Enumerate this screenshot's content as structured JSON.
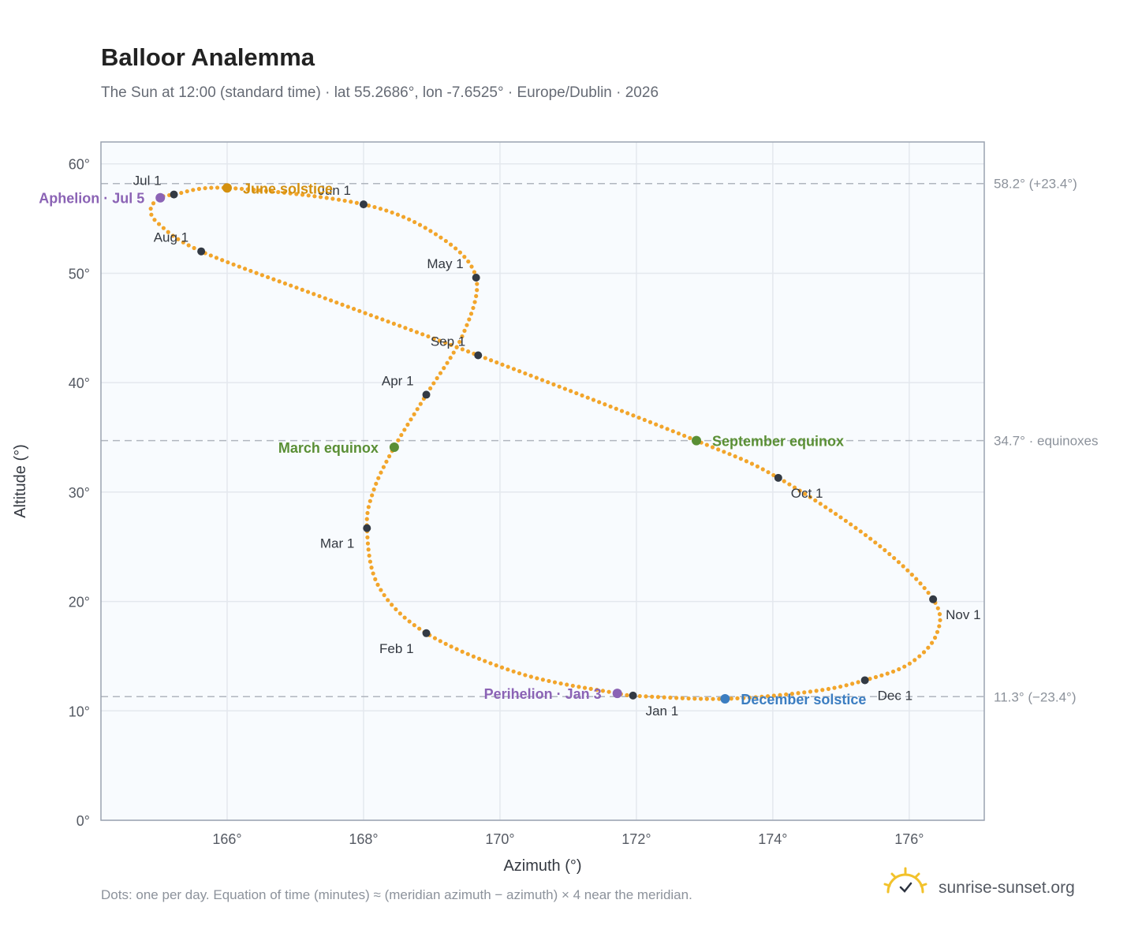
{
  "header": {
    "title": "Balloor Analemma",
    "subtitle": "The Sun at 12:00 (standard time) · lat 55.2686°, lon -7.6525° · Europe/Dublin · 2026"
  },
  "footer": {
    "note": "Dots: one per day. Equation of time (minutes) ≈ (meridian azimuth − azimuth) × 4 near the meridian.",
    "brand": "sunrise-sunset.org"
  },
  "chart_data": {
    "type": "scatter",
    "xlabel": "Azimuth (°)",
    "ylabel": "Altitude (°)",
    "xlim": [
      164.15,
      177.1
    ],
    "ylim": [
      0,
      62
    ],
    "x_ticks": [
      {
        "value": 166,
        "label": "166°"
      },
      {
        "value": 168,
        "label": "168°"
      },
      {
        "value": 170,
        "label": "170°"
      },
      {
        "value": 172,
        "label": "172°"
      },
      {
        "value": 174,
        "label": "174°"
      },
      {
        "value": 176,
        "label": "176°"
      }
    ],
    "y_ticks": [
      {
        "value": 0,
        "label": "0°"
      },
      {
        "value": 10,
        "label": "10°"
      },
      {
        "value": 20,
        "label": "20°"
      },
      {
        "value": 30,
        "label": "30°"
      },
      {
        "value": 40,
        "label": "40°"
      },
      {
        "value": 50,
        "label": "50°"
      },
      {
        "value": 60,
        "label": "60°"
      }
    ],
    "grid": true,
    "colors": {
      "path": "#f2a52b",
      "month": "#333a44",
      "solstice_june": "#d4900e",
      "solstice_december": "#3b7dc1",
      "equinox": "#5a8f35",
      "apsis": "#8b63b5",
      "reference": "#b0b6bf"
    },
    "reference_lines": [
      {
        "y": 58.2,
        "label": "58.2° (+23.4°)"
      },
      {
        "y": 34.7,
        "label": "34.7° · equinoxes"
      },
      {
        "y": 11.3,
        "label": "11.3° (−23.4°)"
      }
    ],
    "path_anchors": [
      {
        "date": "Jan 1",
        "az": 171.95,
        "alt": 11.4
      },
      {
        "date": "Jan 3",
        "az": 171.72,
        "alt": 11.6
      },
      {
        "date": "Jan 15",
        "az": 170.3,
        "alt": 13.4
      },
      {
        "date": "Feb 1",
        "az": 168.92,
        "alt": 17.1
      },
      {
        "date": "Feb 15",
        "az": 168.22,
        "alt": 21.4
      },
      {
        "date": "Mar 1",
        "az": 168.05,
        "alt": 26.7
      },
      {
        "date": "Mar 10",
        "az": 168.15,
        "alt": 30.2
      },
      {
        "date": "Mar 20",
        "az": 168.45,
        "alt": 34.1
      },
      {
        "date": "Apr 1",
        "az": 168.92,
        "alt": 38.9
      },
      {
        "date": "Apr 15",
        "az": 169.45,
        "alt": 44.3
      },
      {
        "date": "May 1",
        "az": 169.65,
        "alt": 49.6
      },
      {
        "date": "May 15",
        "az": 169.1,
        "alt": 53.4
      },
      {
        "date": "Jun 1",
        "az": 168.0,
        "alt": 56.3
      },
      {
        "date": "Jun 21",
        "az": 166.0,
        "alt": 57.8
      },
      {
        "date": "Jul 1",
        "az": 165.22,
        "alt": 57.2
      },
      {
        "date": "Jul 5",
        "az": 165.02,
        "alt": 56.9
      },
      {
        "date": "Jul 12",
        "az": 164.88,
        "alt": 55.9
      },
      {
        "date": "Jul 20",
        "az": 165.0,
        "alt": 54.5
      },
      {
        "date": "Aug 1",
        "az": 165.62,
        "alt": 52.0
      },
      {
        "date": "Aug 15",
        "az": 167.4,
        "alt": 47.8
      },
      {
        "date": "Sep 1",
        "az": 169.68,
        "alt": 42.5
      },
      {
        "date": "Sep 23",
        "az": 172.88,
        "alt": 34.7
      },
      {
        "date": "Oct 1",
        "az": 174.08,
        "alt": 31.3
      },
      {
        "date": "Oct 15",
        "az": 175.5,
        "alt": 25.4
      },
      {
        "date": "Nov 1",
        "az": 176.35,
        "alt": 20.2
      },
      {
        "date": "Nov 10",
        "az": 176.4,
        "alt": 17.0
      },
      {
        "date": "Nov 20",
        "az": 176.0,
        "alt": 14.3
      },
      {
        "date": "Dec 1",
        "az": 175.35,
        "alt": 12.8
      },
      {
        "date": "Dec 10",
        "az": 174.6,
        "alt": 11.8
      },
      {
        "date": "Dec 21",
        "az": 173.3,
        "alt": 11.1
      },
      {
        "date": "Dec 31",
        "az": 172.05,
        "alt": 11.35
      }
    ],
    "months": [
      {
        "label": "Jan 1",
        "az": 171.95,
        "alt": 11.4,
        "label_pos": "below-right"
      },
      {
        "label": "Feb 1",
        "az": 168.92,
        "alt": 17.1,
        "label_pos": "below-left"
      },
      {
        "label": "Mar 1",
        "az": 168.05,
        "alt": 26.7,
        "label_pos": "below-left"
      },
      {
        "label": "Apr 1",
        "az": 168.92,
        "alt": 38.9,
        "label_pos": "above-left"
      },
      {
        "label": "May 1",
        "az": 169.65,
        "alt": 49.6,
        "label_pos": "above-left"
      },
      {
        "label": "Jun 1",
        "az": 168.0,
        "alt": 56.3,
        "label_pos": "above-left"
      },
      {
        "label": "Jul 1",
        "az": 165.22,
        "alt": 57.2,
        "label_pos": "above-left"
      },
      {
        "label": "Aug 1",
        "az": 165.62,
        "alt": 52.0,
        "label_pos": "above-left"
      },
      {
        "label": "Sep 1",
        "az": 169.68,
        "alt": 42.5,
        "label_pos": "above-left"
      },
      {
        "label": "Oct 1",
        "az": 174.08,
        "alt": 31.3,
        "label_pos": "below-right"
      },
      {
        "label": "Nov 1",
        "az": 176.35,
        "alt": 20.2,
        "label_pos": "below-right"
      },
      {
        "label": "Dec 1",
        "az": 175.35,
        "alt": 12.8,
        "label_pos": "below-right"
      }
    ],
    "events": [
      {
        "label": "June solstice",
        "az": 166.0,
        "alt": 57.8,
        "color": "#d4900e",
        "label_pos": "right"
      },
      {
        "label": "December solstice",
        "az": 173.3,
        "alt": 11.1,
        "color": "#3b7dc1",
        "label_pos": "right"
      },
      {
        "label": "March equinox",
        "az": 168.45,
        "alt": 34.1,
        "color": "#5a8f35",
        "label_pos": "left"
      },
      {
        "label": "September equinox",
        "az": 172.88,
        "alt": 34.7,
        "color": "#5a8f35",
        "label_pos": "right"
      },
      {
        "label": "Aphelion · Jul 5",
        "az": 165.02,
        "alt": 56.9,
        "color": "#8b63b5",
        "label_pos": "left"
      },
      {
        "label": "Perihelion · Jan 3",
        "az": 171.72,
        "alt": 11.6,
        "color": "#8b63b5",
        "label_pos": "left"
      }
    ]
  }
}
